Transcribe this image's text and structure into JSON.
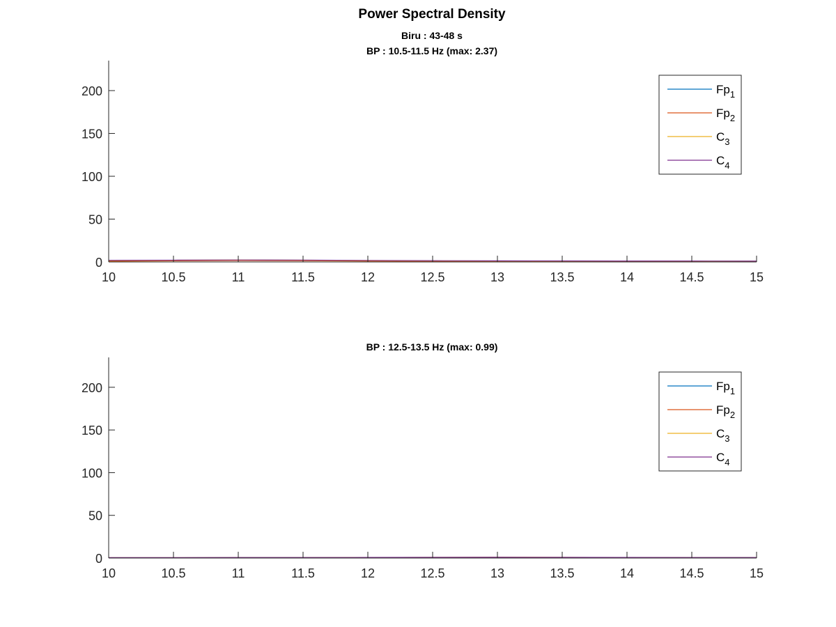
{
  "figure": {
    "title": "Power Spectral Density",
    "subtitle": "Biru : 43-48 s"
  },
  "chart_data": [
    {
      "type": "line",
      "title": "BP : 10.5-11.5 Hz (max: 2.37)",
      "xlabel": "",
      "ylabel": "",
      "xlim": [
        10,
        15
      ],
      "ylim": [
        0,
        235
      ],
      "xticks": [
        10,
        10.5,
        11,
        11.5,
        12,
        12.5,
        13,
        13.5,
        14,
        14.5,
        15
      ],
      "yticks": [
        0,
        50,
        100,
        150,
        200
      ],
      "legend_position": "top-right",
      "grid": false,
      "series": [
        {
          "name": "Fp",
          "subscript": "1",
          "color": "#0072BD",
          "x": [
            10,
            10.5,
            11,
            11.5,
            12,
            12.5,
            13,
            13.5,
            14,
            14.5,
            15
          ],
          "y": [
            1.2,
            1.8,
            2.2,
            1.9,
            1.4,
            1.1,
            1.0,
            0.9,
            0.9,
            0.8,
            0.8
          ]
        },
        {
          "name": "Fp",
          "subscript": "2",
          "color": "#D95319",
          "x": [
            10,
            10.5,
            11,
            11.5,
            12,
            12.5,
            13,
            13.5,
            14,
            14.5,
            15
          ],
          "y": [
            0.8,
            1.3,
            1.6,
            1.4,
            1.0,
            0.8,
            0.7,
            0.7,
            0.6,
            0.6,
            0.6
          ]
        },
        {
          "name": "C",
          "subscript": "3",
          "color": "#EDB120",
          "x": [
            10,
            10.5,
            11,
            11.5,
            12,
            12.5,
            13,
            13.5,
            14,
            14.5,
            15
          ],
          "y": [
            1.5,
            2.0,
            2.37,
            2.1,
            1.6,
            1.3,
            1.1,
            1.0,
            1.0,
            0.9,
            0.9
          ]
        },
        {
          "name": "C",
          "subscript": "4",
          "color": "#7E2F8E",
          "x": [
            10,
            10.5,
            11,
            11.5,
            12,
            12.5,
            13,
            13.5,
            14,
            14.5,
            15
          ],
          "y": [
            1.9,
            2.1,
            2.3,
            2.2,
            1.8,
            1.5,
            1.3,
            1.2,
            1.1,
            1.1,
            1.0
          ]
        }
      ]
    },
    {
      "type": "line",
      "title": "BP : 12.5-13.5 Hz (max: 0.99)",
      "xlabel": "",
      "ylabel": "",
      "xlim": [
        10,
        15
      ],
      "ylim": [
        0,
        235
      ],
      "xticks": [
        10,
        10.5,
        11,
        11.5,
        12,
        12.5,
        13,
        13.5,
        14,
        14.5,
        15
      ],
      "yticks": [
        0,
        50,
        100,
        150,
        200
      ],
      "legend_position": "top-right",
      "grid": false,
      "series": [
        {
          "name": "Fp",
          "subscript": "1",
          "color": "#0072BD",
          "x": [
            10,
            10.5,
            11,
            11.5,
            12,
            12.5,
            13,
            13.5,
            14,
            14.5,
            15
          ],
          "y": [
            0.3,
            0.3,
            0.4,
            0.4,
            0.5,
            0.6,
            0.7,
            0.6,
            0.5,
            0.4,
            0.4
          ]
        },
        {
          "name": "Fp",
          "subscript": "2",
          "color": "#D95319",
          "x": [
            10,
            10.5,
            11,
            11.5,
            12,
            12.5,
            13,
            13.5,
            14,
            14.5,
            15
          ],
          "y": [
            0.2,
            0.3,
            0.3,
            0.3,
            0.4,
            0.5,
            0.6,
            0.5,
            0.4,
            0.3,
            0.3
          ]
        },
        {
          "name": "C",
          "subscript": "3",
          "color": "#EDB120",
          "x": [
            10,
            10.5,
            11,
            11.5,
            12,
            12.5,
            13,
            13.5,
            14,
            14.5,
            15
          ],
          "y": [
            0.4,
            0.4,
            0.5,
            0.5,
            0.6,
            0.8,
            0.99,
            0.8,
            0.6,
            0.5,
            0.5
          ]
        },
        {
          "name": "C",
          "subscript": "4",
          "color": "#7E2F8E",
          "x": [
            10,
            10.5,
            11,
            11.5,
            12,
            12.5,
            13,
            13.5,
            14,
            14.5,
            15
          ],
          "y": [
            0.5,
            0.5,
            0.6,
            0.6,
            0.7,
            0.8,
            0.9,
            0.8,
            0.7,
            0.6,
            0.6
          ]
        }
      ]
    }
  ]
}
